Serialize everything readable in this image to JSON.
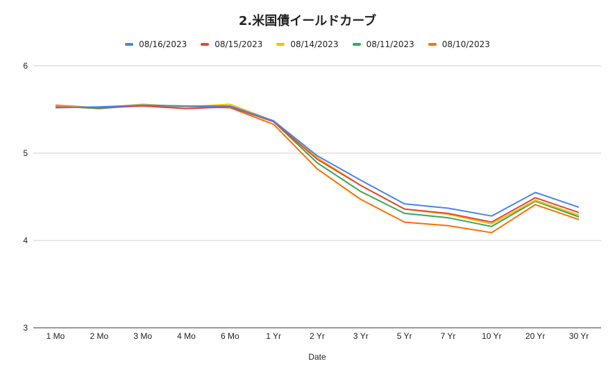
{
  "chart_data": {
    "type": "line",
    "title": "2.米国債イールドカーブ",
    "xlabel": "Date",
    "ylabel": "",
    "ylim": [
      3,
      6
    ],
    "yticks": [
      "3",
      "4",
      "5",
      "6"
    ],
    "grid": true,
    "legend_position": "top",
    "categories": [
      "1 Mo",
      "2 Mo",
      "3 Mo",
      "4 Mo",
      "6 Mo",
      "1 Yr",
      "2 Yr",
      "3 Yr",
      "5 Yr",
      "7 Yr",
      "10 Yr",
      "20 Yr",
      "30 Yr"
    ],
    "series": [
      {
        "name": "08/16/2023",
        "color": "#4285f4",
        "values": [
          5.52,
          5.53,
          5.55,
          5.54,
          5.54,
          5.37,
          4.97,
          4.69,
          4.42,
          4.37,
          4.28,
          4.55,
          4.38
        ]
      },
      {
        "name": "08/15/2023",
        "color": "#ea4335",
        "values": [
          5.53,
          5.52,
          5.54,
          5.51,
          5.53,
          5.36,
          4.93,
          4.63,
          4.36,
          4.31,
          4.21,
          4.49,
          4.32
        ]
      },
      {
        "name": "08/14/2023",
        "color": "#fbbc04",
        "values": [
          5.54,
          5.52,
          5.56,
          5.53,
          5.56,
          5.37,
          4.95,
          4.63,
          4.36,
          4.3,
          4.19,
          4.46,
          4.29
        ]
      },
      {
        "name": "08/11/2023",
        "color": "#34a853",
        "values": [
          5.54,
          5.51,
          5.55,
          5.54,
          5.53,
          5.36,
          4.89,
          4.56,
          4.31,
          4.26,
          4.16,
          4.45,
          4.27
        ]
      },
      {
        "name": "08/10/2023",
        "color": "#ff6d01",
        "values": [
          5.55,
          5.52,
          5.54,
          5.53,
          5.52,
          5.33,
          4.82,
          4.47,
          4.21,
          4.17,
          4.09,
          4.41,
          4.24
        ]
      }
    ]
  }
}
